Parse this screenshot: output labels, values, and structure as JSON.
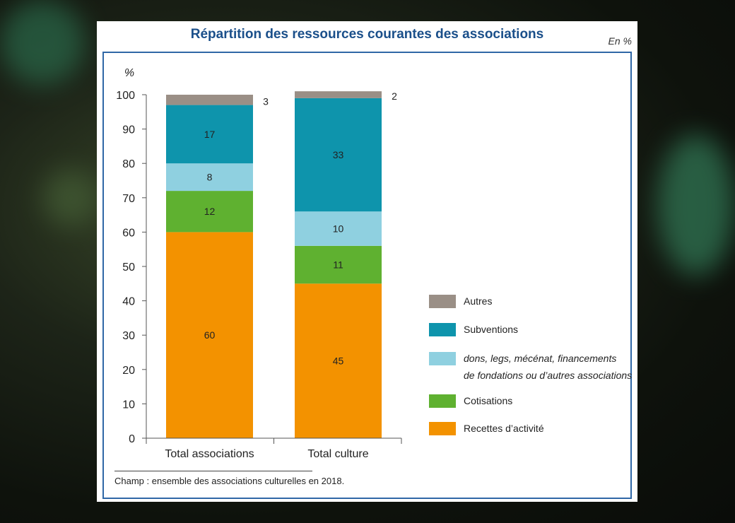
{
  "title": "Répartition des ressources courantes des associations",
  "unit_note": "En %",
  "source_note": "Champ : ensemble des associations culturelles en 2018.",
  "chart_data": {
    "type": "bar",
    "stacked": true,
    "ylabel": "%",
    "ylim": [
      0,
      100
    ],
    "yticks": [
      0,
      10,
      20,
      30,
      40,
      50,
      60,
      70,
      80,
      90,
      100
    ],
    "categories": [
      "Total associations",
      "Total culture"
    ],
    "series": [
      {
        "name": "Recettes d'activité",
        "color": "#f39200",
        "values": [
          60,
          45
        ]
      },
      {
        "name": "Cotisations",
        "color": "#5fb130",
        "values": [
          12,
          11
        ]
      },
      {
        "name": "dons, legs, mécénat, financements de fondations ou d'autres associations",
        "color": "#8fd0e0",
        "values": [
          8,
          10
        ]
      },
      {
        "name": "Subventions",
        "color": "#0e94ac",
        "values": [
          17,
          33
        ]
      },
      {
        "name": "Autres",
        "color": "#9a8f86",
        "values": [
          3,
          2
        ]
      }
    ],
    "legend": [
      {
        "label": "Autres",
        "italic": false,
        "color": "#9a8f86"
      },
      {
        "label": "Subventions",
        "italic": false,
        "color": "#0e94ac"
      },
      {
        "label": "dons, legs, mécénat, financements",
        "label2": "de fondations ou d’autres associations",
        "italic": true,
        "color": "#8fd0e0"
      },
      {
        "label": "Cotisations",
        "italic": false,
        "color": "#5fb130"
      },
      {
        "label": "Recettes d’activité",
        "italic": false,
        "color": "#f39200"
      }
    ],
    "legend_position": "right"
  }
}
